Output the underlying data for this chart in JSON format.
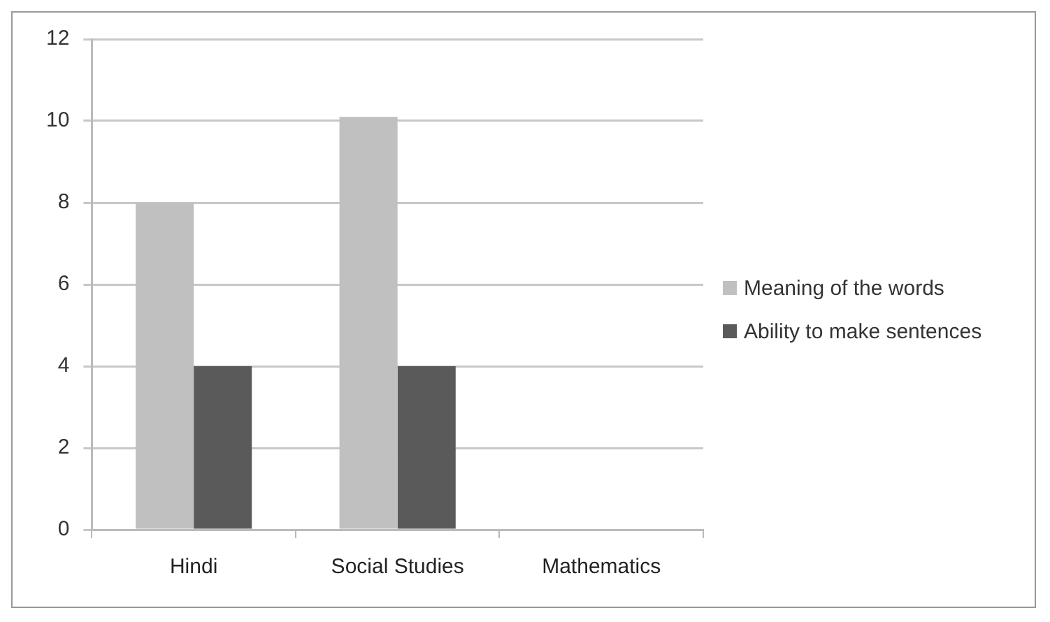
{
  "chart_data": {
    "type": "bar",
    "categories": [
      "Hindi",
      "Social Studies",
      "Mathematics"
    ],
    "series": [
      {
        "name": "Meaning of the words",
        "color": "#c0c0c0",
        "values": [
          8,
          10.1,
          0
        ]
      },
      {
        "name": "Ability to make sentences",
        "color": "#5a5a5a",
        "values": [
          4,
          4,
          0
        ]
      }
    ],
    "ylim": [
      0,
      12
    ],
    "yticks": [
      0,
      2,
      4,
      6,
      8,
      10,
      12
    ],
    "grid": "y",
    "legend": "right"
  }
}
